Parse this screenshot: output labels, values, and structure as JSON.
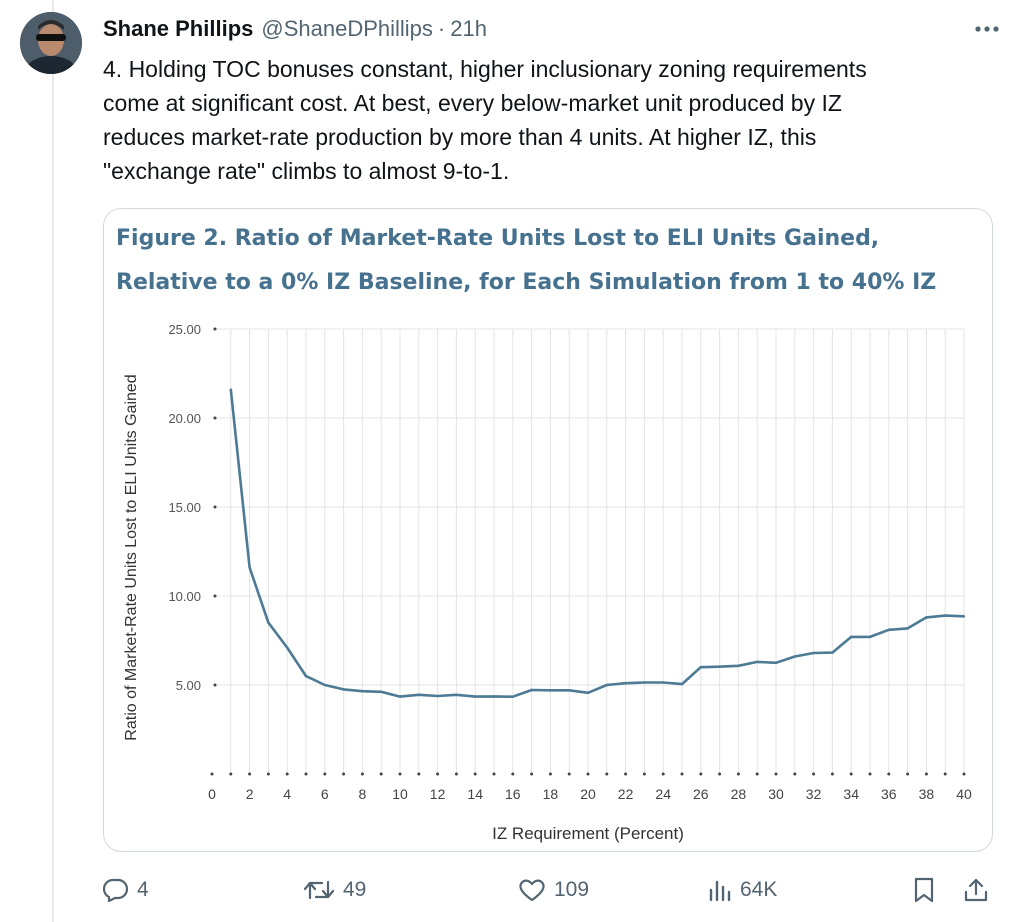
{
  "tweet": {
    "author_name": "Shane Phillips",
    "author_handle": "@ShaneDPhillips",
    "separator": "·",
    "time_ago": "21h",
    "text_lines": [
      "4. Holding TOC bonuses constant, higher inclusionary zoning requirements",
      "come at significant cost. At best, every below-market unit produced by IZ",
      "reduces market-rate production by more than 4 units. At higher IZ, this",
      "\"exchange rate\" climbs to almost 9-to-1."
    ],
    "more_icon": "ellipsis-icon",
    "avatar_icon": "user-avatar"
  },
  "figure": {
    "title_lines": [
      "Figure 2. Ratio of Market-Rate Units Lost to ELI Units Gained,",
      "Relative to a 0% IZ Baseline, for Each Simulation from 1 to 40% IZ"
    ]
  },
  "chart_data": {
    "type": "line",
    "title": "Figure 2. Ratio of Market-Rate Units Lost to ELI Units Gained, Relative to a 0% IZ Baseline, for Each Simulation from 1 to 40% IZ",
    "xlabel": "IZ Requirement (Percent)",
    "ylabel": "Ratio of Market-Rate Units Lost to ELI Units Gained",
    "xlim": [
      0,
      40
    ],
    "ylim": [
      0,
      25
    ],
    "x_ticks": [
      0,
      2,
      4,
      6,
      8,
      10,
      12,
      14,
      16,
      18,
      20,
      22,
      24,
      26,
      28,
      30,
      32,
      34,
      36,
      38,
      40
    ],
    "y_ticks": [
      "25.00",
      "20.00",
      "15.00",
      "10.00",
      "5.00"
    ],
    "y_tick_values": [
      25,
      20,
      15,
      10,
      5
    ],
    "grid": "vertical and horizontal",
    "line_color": "#4d7a95",
    "series": [
      {
        "x": [
          1,
          2,
          3,
          4,
          5,
          6,
          7,
          8,
          9,
          10,
          11,
          12,
          13,
          14,
          15,
          16,
          17,
          18,
          19,
          20,
          21,
          22,
          23,
          24,
          25,
          26,
          27,
          28,
          29,
          30,
          31,
          32,
          33,
          34,
          35,
          36,
          37,
          38,
          39,
          40
        ],
        "values": [
          21.6,
          11.6,
          8.5,
          7.1,
          5.5,
          5.0,
          4.75,
          4.65,
          4.62,
          4.35,
          4.45,
          4.38,
          4.45,
          4.35,
          4.36,
          4.34,
          4.72,
          4.7,
          4.7,
          4.56,
          5.0,
          5.1,
          5.14,
          5.14,
          5.05,
          6.0,
          6.03,
          6.08,
          6.3,
          6.25,
          6.6,
          6.8,
          6.82,
          7.7,
          7.7,
          8.1,
          8.18,
          8.8,
          8.9,
          8.86
        ]
      }
    ]
  },
  "actions": {
    "reply_count": "4",
    "retweet_count": "49",
    "like_count": "109",
    "views_count": "64K",
    "reply_icon": "reply-icon",
    "retweet_icon": "retweet-icon",
    "like_icon": "heart-icon",
    "views_icon": "views-icon",
    "bookmark_icon": "bookmark-icon",
    "share_icon": "share-icon"
  }
}
